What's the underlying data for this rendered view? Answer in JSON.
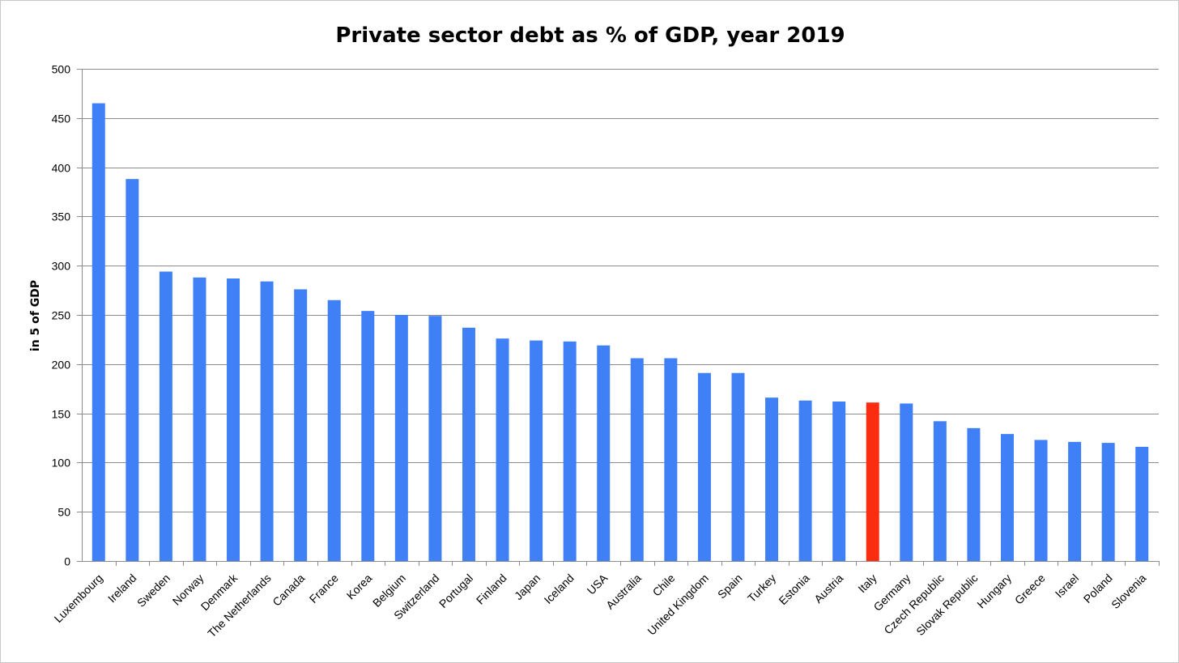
{
  "chart_data": {
    "type": "bar",
    "title": "Private sector debt as % of GDP, year 2019",
    "xlabel": "",
    "ylabel": "in 5 of GDP",
    "ylim": [
      0,
      500
    ],
    "yticks": [
      0,
      50,
      100,
      150,
      200,
      250,
      300,
      350,
      400,
      450,
      500
    ],
    "grid": true,
    "categories": [
      "Luxembourg",
      "Ireland",
      "Sweden",
      "Norway",
      "Denmark",
      "The Netherlands",
      "Canada",
      "France",
      "Korea",
      "Belgium",
      "Switzerland",
      "Portugal",
      "Finland",
      "Japan",
      "Iceland",
      "USA",
      "Australia",
      "Chile",
      "United Kingdom",
      "Spain",
      "Turkey",
      "Estonia",
      "Austria",
      "Italy",
      "Germany",
      "Czech Republic",
      "Slovak Republic",
      "Hungary",
      "Greece",
      "Israel",
      "Poland",
      "Slovenia"
    ],
    "values": [
      465,
      388,
      294,
      288,
      287,
      284,
      276,
      265,
      254,
      250,
      249,
      237,
      226,
      224,
      223,
      219,
      206,
      206,
      191,
      191,
      166,
      163,
      162,
      161,
      160,
      142,
      135,
      129,
      123,
      121,
      120,
      116
    ],
    "highlight": "Italy",
    "colors": {
      "bar": "#4080f7",
      "highlight": "#fa2d10"
    }
  }
}
